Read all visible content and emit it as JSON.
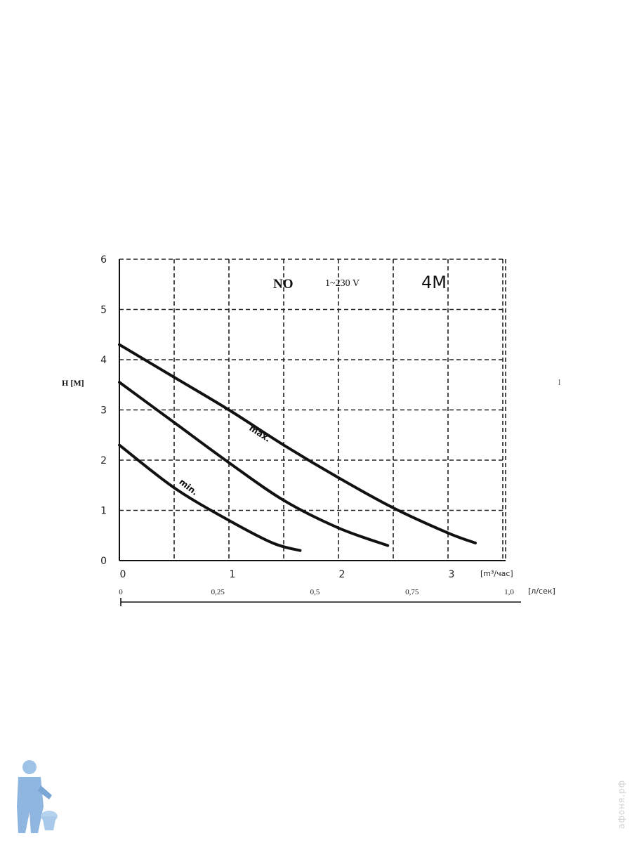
{
  "chart_data": {
    "type": "line",
    "title": "NO",
    "subtitle": "1~230 V",
    "model": "4M",
    "ylabel": "H [M]",
    "xlabel": "[m³/час]",
    "x2label": "[л/сек]",
    "xlim": [
      0,
      3.5
    ],
    "ylim": [
      0,
      6
    ],
    "x_ticks": [
      "0",
      "1",
      "2",
      "3"
    ],
    "y_ticks": [
      "0",
      "1",
      "2",
      "3",
      "4",
      "5",
      "6"
    ],
    "x2_ticks": [
      "0",
      "0,25",
      "0,5",
      "0,75",
      "1,0"
    ],
    "x2_values": [
      0,
      0.25,
      0.5,
      0.75,
      1.0
    ],
    "grid": true,
    "series": [
      {
        "name": "max.",
        "x": [
          0,
          0.5,
          1.0,
          1.5,
          2.0,
          2.5,
          3.0,
          3.25
        ],
        "y": [
          4.3,
          3.65,
          3.0,
          2.3,
          1.65,
          1.05,
          0.55,
          0.35
        ]
      },
      {
        "x": [
          0,
          0.5,
          1.0,
          1.5,
          2.0,
          2.45
        ],
        "y": [
          3.55,
          2.75,
          1.95,
          1.2,
          0.65,
          0.3
        ]
      },
      {
        "name": "min.",
        "x": [
          0,
          0.5,
          1.0,
          1.4,
          1.65
        ],
        "y": [
          2.3,
          1.45,
          0.8,
          0.35,
          0.2
        ]
      }
    ]
  },
  "stray_mark": "l",
  "watermark": "афоня.рф"
}
